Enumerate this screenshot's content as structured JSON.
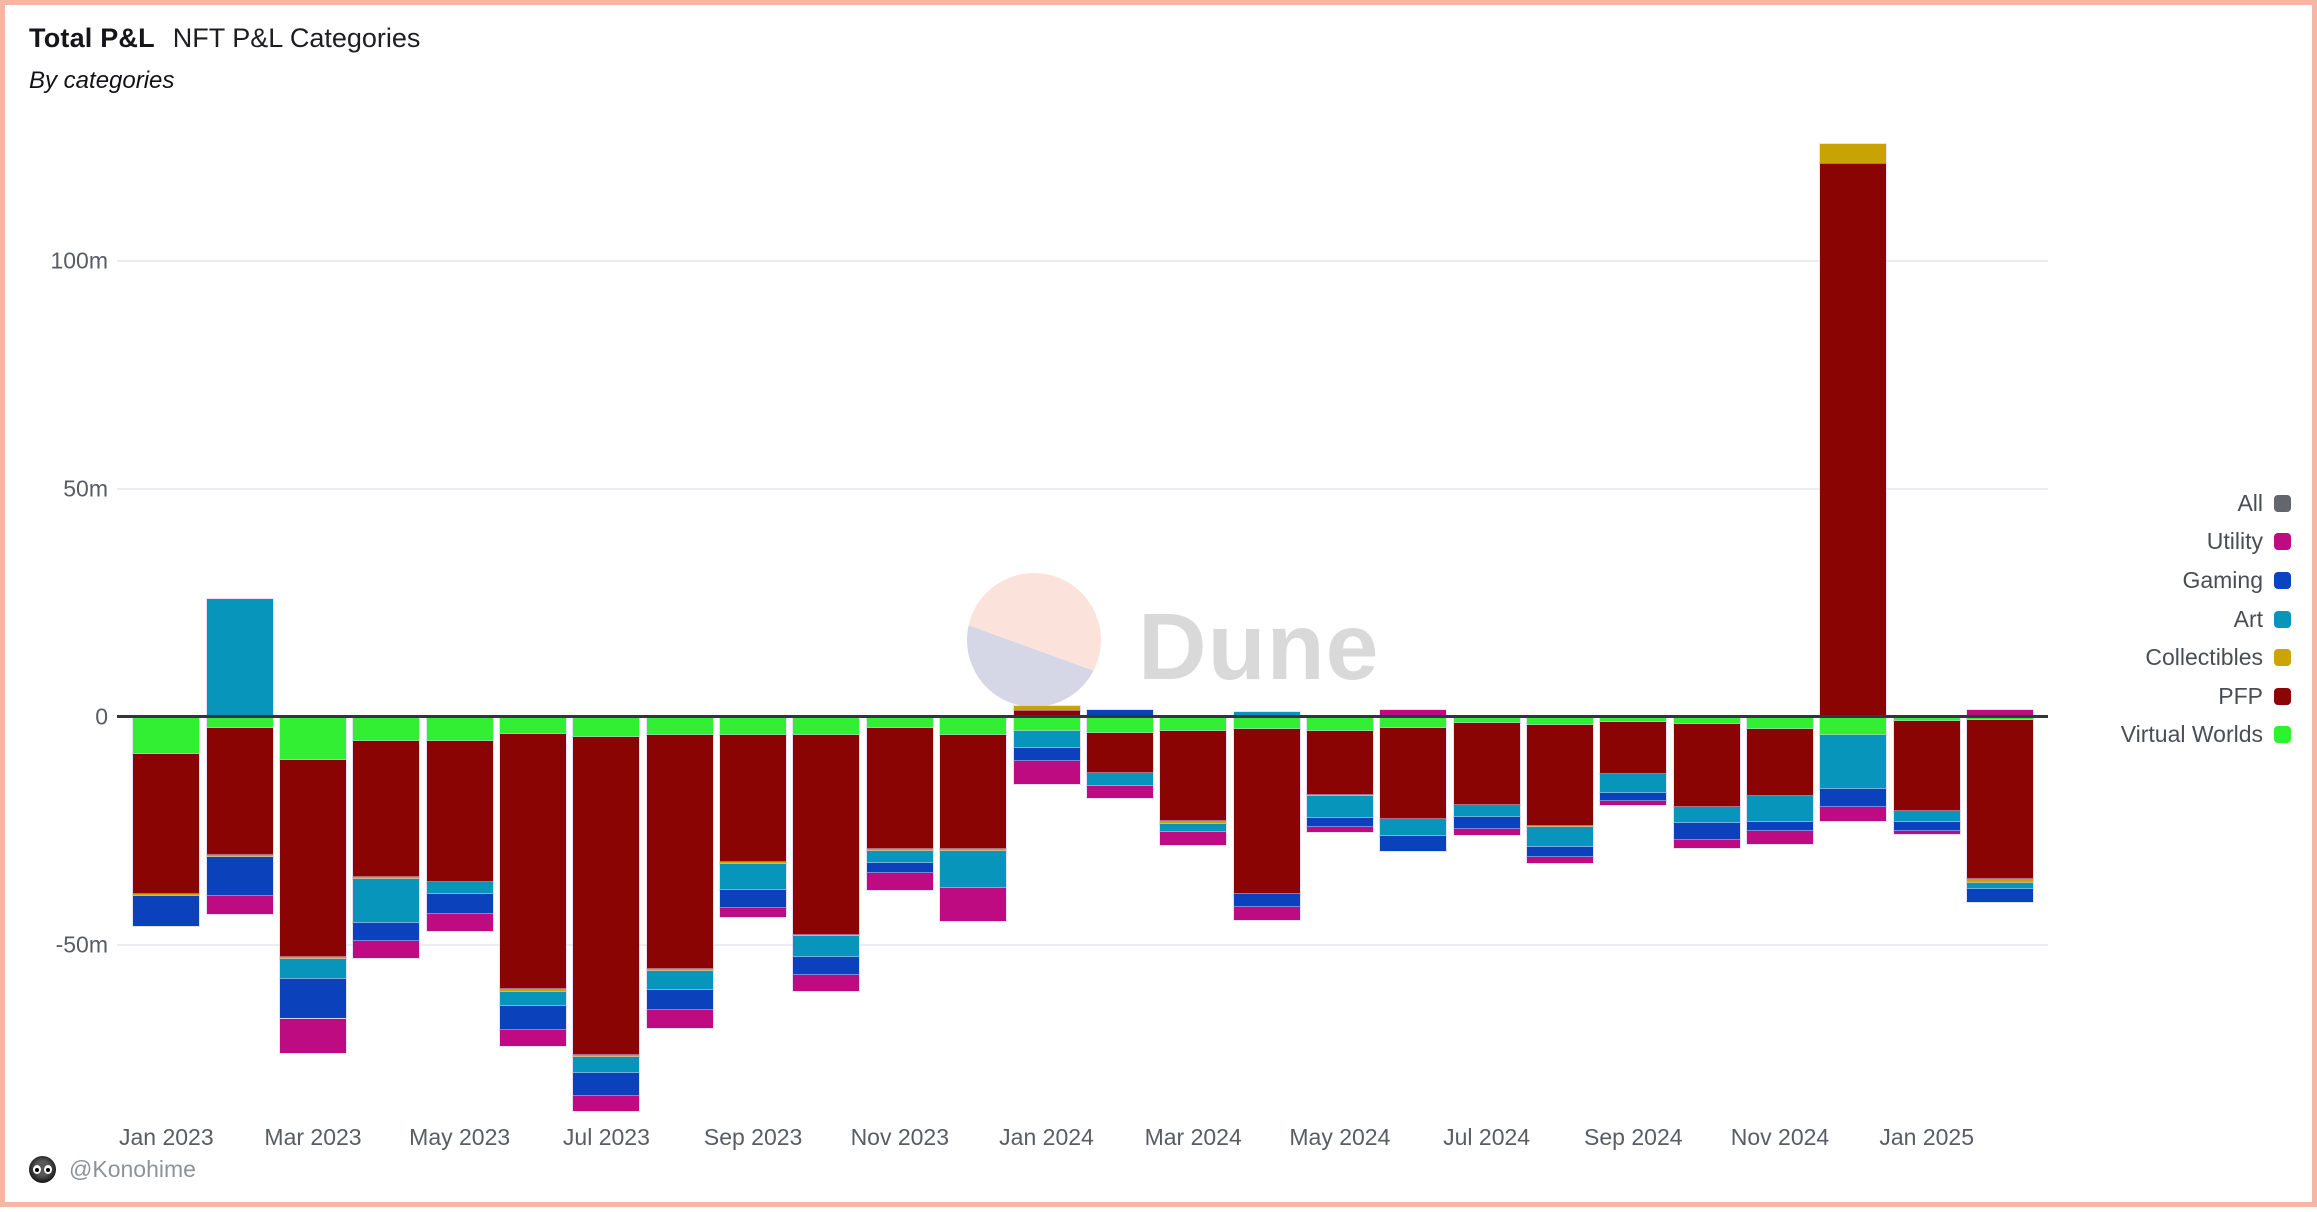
{
  "header": {
    "title": "Total P&L",
    "subtitle": "NFT P&L Categories",
    "byline": "By categories"
  },
  "watermark": {
    "text": "Dune"
  },
  "attribution": {
    "handle": "@Konohime"
  },
  "legend": {
    "items": [
      {
        "label": "All",
        "color": "#63666c"
      },
      {
        "label": "Utility",
        "color": "#bf0b82"
      },
      {
        "label": "Gaming",
        "color": "#0c42c4"
      },
      {
        "label": "Art",
        "color": "#0795ba"
      },
      {
        "label": "Collectibles",
        "color": "#cda403"
      },
      {
        "label": "PFP",
        "color": "#8b0505"
      },
      {
        "label": "Virtual Worlds",
        "color": "#2df22d"
      }
    ]
  },
  "chart_data": {
    "type": "bar",
    "stacked": true,
    "title": "Total P&L — NFT P&L Categories",
    "subtitle": "By categories",
    "unit": "millions USD",
    "ylim": [
      -90,
      135
    ],
    "grid": true,
    "legend_position": "right",
    "yticks": [
      {
        "label": "100m",
        "value": 100
      },
      {
        "label": "50m",
        "value": 50
      },
      {
        "label": "0",
        "value": 0
      },
      {
        "label": "-50m",
        "value": -50
      }
    ],
    "xtick_labels": [
      "Jan 2023",
      "Mar 2023",
      "May 2023",
      "Jul 2023",
      "Sep 2023",
      "Nov 2023",
      "Jan 2024",
      "Mar 2024",
      "May 2024",
      "Jul 2024",
      "Sep 2024",
      "Nov 2024",
      "Jan 2025"
    ],
    "categories": [
      "Jan 2023",
      "Feb 2023",
      "Mar 2023",
      "Apr 2023",
      "May 2023",
      "Jun 2023",
      "Jul 2023",
      "Aug 2023",
      "Sep 2023",
      "Oct 2023",
      "Nov 2023",
      "Dec 2023",
      "Jan 2024",
      "Feb 2024",
      "Mar 2024",
      "Apr 2024",
      "May 2024",
      "Jun 2024",
      "Jul 2024",
      "Aug 2024",
      "Sep 2024",
      "Oct 2024",
      "Nov 2024",
      "Dec 2024",
      "Jan 2025",
      "Feb 2025"
    ],
    "series": [
      {
        "key": "virtual_worlds",
        "name": "Virtual Worlds",
        "color": "#33ef33",
        "values": [
          -8.0,
          -2.2,
          -9.2,
          -5.0,
          -5.1,
          -3.4,
          -4.2,
          -3.8,
          -3.7,
          -3.8,
          -2.3,
          -3.7,
          -2.9,
          -3.2,
          -2.9,
          -2.5,
          -2.8,
          -2.2,
          -1.2,
          -1.5,
          -0.9,
          -1.3,
          -2.5,
          -3.8,
          -0.6,
          -0.4
        ]
      },
      {
        "key": "pfp",
        "name": "PFP",
        "color": "#8b0404",
        "values": [
          -30.6,
          -27.9,
          -43.3,
          -29.9,
          -30.8,
          -56.0,
          -69.8,
          -51.3,
          -27.9,
          -43.7,
          -26.5,
          -25.1,
          1.0,
          -8.9,
          -19.7,
          -36.1,
          -14.0,
          -19.9,
          -17.8,
          -22.1,
          -11.3,
          -18.3,
          -14.5,
          121.0,
          -19.7,
          -34.8
        ]
      },
      {
        "key": "collectibles",
        "name": "Collectibles",
        "color": "#c7a303",
        "values": [
          -0.5,
          -0.4,
          -0.3,
          -0.5,
          0,
          -0.6,
          -0.4,
          -0.4,
          -0.4,
          -0.4,
          -0.3,
          -0.4,
          1.0,
          0,
          -0.6,
          0,
          -0.4,
          0,
          0,
          -0.4,
          0,
          0,
          0,
          4.3,
          0,
          -0.9
        ]
      },
      {
        "key": "art",
        "name": "Art",
        "color": "#0795bb",
        "values": [
          0,
          25.5,
          -4.5,
          -9.5,
          -2.6,
          -3.2,
          -3.5,
          -4.2,
          -5.8,
          -4.5,
          -2.6,
          -8.0,
          -3.7,
          -2.9,
          -1.8,
          0.7,
          -4.8,
          -3.8,
          -2.8,
          -4.2,
          -4.2,
          -3.4,
          -5.8,
          -11.8,
          -2.6,
          -1.5
        ]
      },
      {
        "key": "gaming",
        "name": "Gaming",
        "color": "#0b42bb",
        "values": [
          -6.6,
          -8.6,
          -8.6,
          -4.1,
          -4.5,
          -5.3,
          -5.0,
          -4.4,
          -3.8,
          -3.9,
          -2.3,
          0,
          -2.8,
          1.0,
          0,
          -2.8,
          -2.0,
          -3.2,
          -2.6,
          -2.3,
          -1.9,
          -3.7,
          -1.9,
          -3.9,
          -1.9,
          -2.8
        ]
      },
      {
        "key": "utility",
        "name": "Utility",
        "color": "#bf0b82",
        "values": [
          0,
          -3.9,
          -7.6,
          -3.6,
          -3.8,
          -3.4,
          -3.3,
          -3.9,
          -2.0,
          -3.5,
          -3.7,
          -7.3,
          -5.1,
          -2.5,
          -2.8,
          -2.9,
          -1.0,
          1.2,
          -1.3,
          -1.3,
          -0.7,
          -1.8,
          -2.9,
          -3.1,
          -0.6,
          1.0
        ]
      }
    ],
    "neg_stack_order": [
      "virtual_worlds",
      "pfp",
      "collectibles",
      "art",
      "gaming",
      "utility"
    ],
    "pos_stack_order": [
      "pfp",
      "collectibles",
      "art",
      "gaming",
      "utility",
      "virtual_worlds"
    ]
  }
}
